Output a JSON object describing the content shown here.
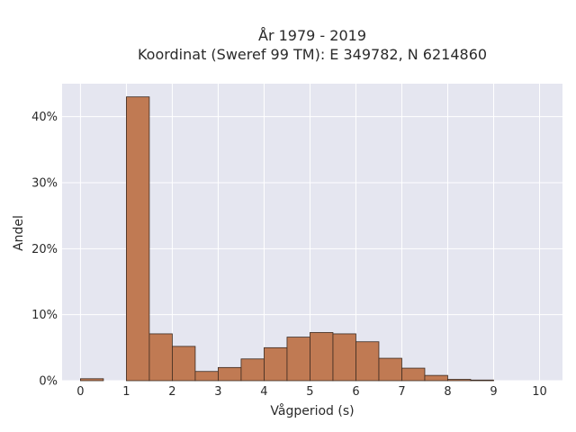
{
  "chart_data": {
    "type": "bar",
    "title_line1": "År 1979 - 2019",
    "title_line2": "Koordinat (Sweref 99 TM): E 349782, N 6214860",
    "xlabel": "Vågperiod (s)",
    "ylabel": "Andel",
    "xlim": [
      -0.4,
      10.5
    ],
    "ylim": [
      0,
      45
    ],
    "x_ticks": [
      0,
      1,
      2,
      3,
      4,
      5,
      6,
      7,
      8,
      9,
      10
    ],
    "x_tick_labels": [
      "0",
      "1",
      "2",
      "3",
      "4",
      "5",
      "6",
      "7",
      "8",
      "9",
      "10"
    ],
    "y_ticks": [
      0,
      10,
      20,
      30,
      40
    ],
    "y_tick_labels": [
      "0%",
      "10%",
      "20%",
      "30%",
      "40%"
    ],
    "grid": true,
    "bin_width": 0.5,
    "bins": [
      {
        "start": 0.0,
        "end": 0.5,
        "value": 0.3
      },
      {
        "start": 1.0,
        "end": 1.5,
        "value": 43.0
      },
      {
        "start": 1.5,
        "end": 2.0,
        "value": 7.1
      },
      {
        "start": 2.0,
        "end": 2.5,
        "value": 5.2
      },
      {
        "start": 2.5,
        "end": 3.0,
        "value": 1.4
      },
      {
        "start": 3.0,
        "end": 3.5,
        "value": 2.0
      },
      {
        "start": 3.5,
        "end": 4.0,
        "value": 3.3
      },
      {
        "start": 4.0,
        "end": 4.5,
        "value": 5.0
      },
      {
        "start": 4.5,
        "end": 5.0,
        "value": 6.6
      },
      {
        "start": 5.0,
        "end": 5.5,
        "value": 7.3
      },
      {
        "start": 5.5,
        "end": 6.0,
        "value": 7.1
      },
      {
        "start": 6.0,
        "end": 6.5,
        "value": 5.9
      },
      {
        "start": 6.5,
        "end": 7.0,
        "value": 3.4
      },
      {
        "start": 7.0,
        "end": 7.5,
        "value": 1.9
      },
      {
        "start": 7.5,
        "end": 8.0,
        "value": 0.8
      },
      {
        "start": 8.0,
        "end": 8.5,
        "value": 0.2
      },
      {
        "start": 8.5,
        "end": 9.0,
        "value": 0.1
      }
    ],
    "colors": {
      "bar_fill": "#c07a53",
      "bar_stroke": "#3b2a20",
      "plot_bg": "#e5e6f0",
      "grid": "#ffffff"
    }
  }
}
